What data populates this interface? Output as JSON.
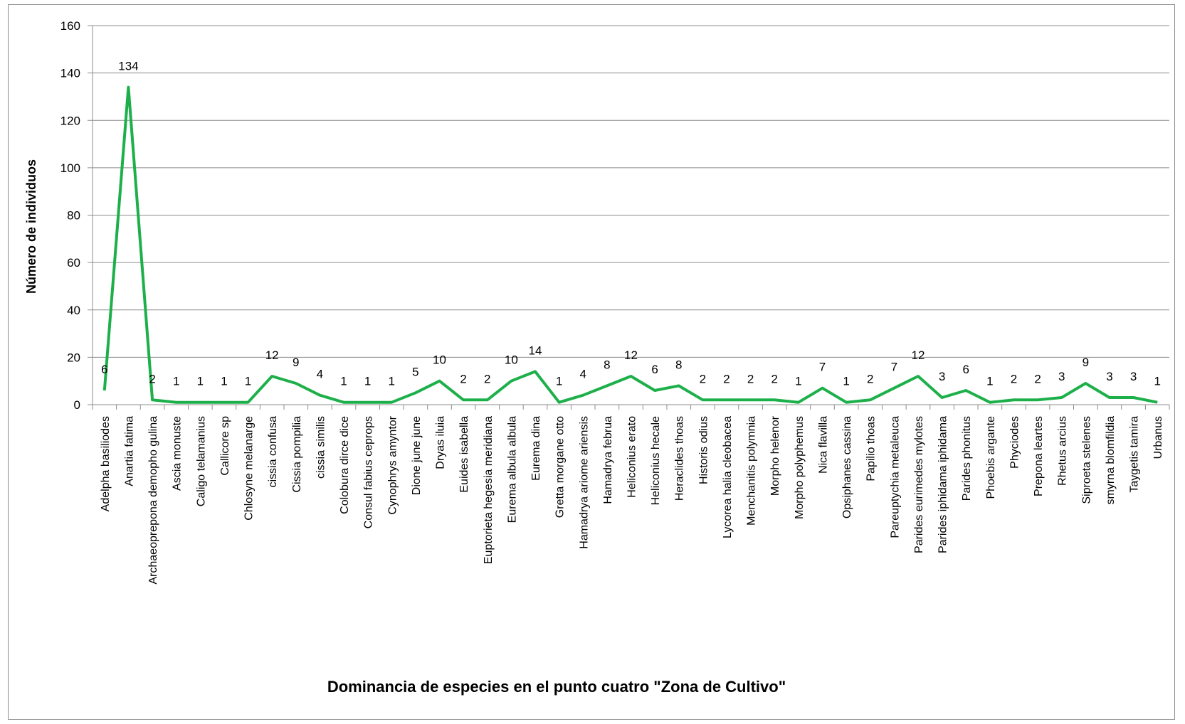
{
  "chart_data": {
    "type": "line",
    "title": "Dominancia de especies en el punto cuatro \"Zona de Cultivo\"",
    "xlabel": "",
    "ylabel": "Número de individuos",
    "ylim": [
      0,
      160
    ],
    "yticks": [
      0,
      20,
      40,
      60,
      80,
      100,
      120,
      140,
      160
    ],
    "grid": true,
    "legend": "none",
    "color": "#1db04a",
    "categories": [
      "Adelpha basiliodes",
      "Anartia fatima",
      "Archaeoprepona demopho gulina",
      "Ascia monuste",
      "Caligo telamanius",
      "Callicore sp",
      "Chlosyne melanarge",
      "cissia confusa",
      "Cissia pompilia",
      "cissia similis",
      "Colobura dirce dice",
      "Consul fabius ceprops",
      "Cynophrys amyntor",
      "Dione june june",
      "Dryas iluia",
      "Euides isabella",
      "Euptorieta hegesia meridiana",
      "Eurema albula albula",
      "Eurema dina",
      "Gretta morgane otto",
      "Hamadrya ariome ariensis",
      "Hamadrya februa",
      "Heliconius erato",
      "Heliconius hecale",
      "Heraclides thoas",
      "Historis odius",
      "Lycorea halia cleobacea",
      "Menchanitis polymnia",
      "Morpho helenor",
      "Morpho polyphemus",
      "Nica flavilla",
      "Opsiphanes cassina",
      "Papilio thoas",
      "Pareuptychia metaleuca",
      "Parides eurimedes mylotes",
      "Parides iphidama iphidama",
      "Parides phonitus",
      "Phoebis argante",
      "Phyciodes",
      "Prepona leartes",
      "Rhetus arcius",
      "Siproeta stelenes",
      "smyrna blomfildia",
      "Taygetis tamira",
      "Urbanus"
    ],
    "series": [
      {
        "values": [
          6,
          134,
          2,
          1,
          1,
          1,
          1,
          12,
          9,
          4,
          1,
          1,
          1,
          5,
          10,
          2,
          2,
          10,
          14,
          1,
          4,
          8,
          12,
          6,
          8,
          2,
          2,
          2,
          2,
          1,
          7,
          1,
          2,
          7,
          12,
          3,
          6,
          1,
          2,
          2,
          3,
          9,
          3,
          3,
          1
        ]
      }
    ]
  }
}
